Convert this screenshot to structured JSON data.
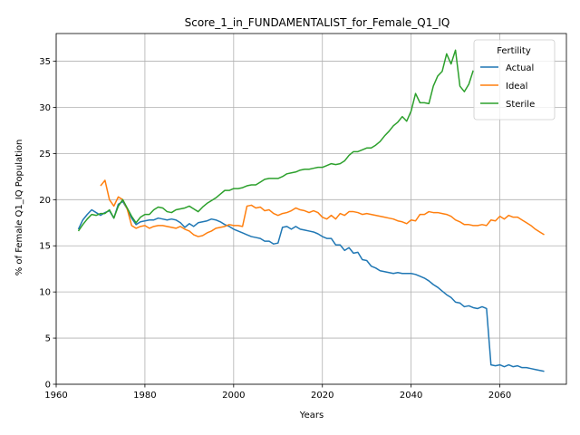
{
  "chart_data": {
    "type": "line",
    "title": "Score_1_in_FUNDAMENTALIST_for_Female_Q1_IQ",
    "xlabel": "Years",
    "ylabel": "% of Female Q1_IQ Population",
    "xlim": [
      1960,
      2075
    ],
    "ylim": [
      0,
      38
    ],
    "xticks": [
      1960,
      1980,
      2000,
      2020,
      2040,
      2060
    ],
    "yticks": [
      0,
      5,
      10,
      15,
      20,
      25,
      30,
      35
    ],
    "grid": true,
    "legend": {
      "title": "Fertility",
      "position": "top-right"
    },
    "series": [
      {
        "name": "Actual",
        "color": "#1f77b4",
        "points": [
          [
            1965,
            16.8
          ],
          [
            1966,
            17.8
          ],
          [
            1967,
            18.4
          ],
          [
            1968,
            18.9
          ],
          [
            1969,
            18.6
          ],
          [
            1970,
            18.3
          ],
          [
            1971,
            18.6
          ],
          [
            1972,
            18.8
          ],
          [
            1973,
            18.0
          ],
          [
            1974,
            19.5
          ],
          [
            1975,
            19.8
          ],
          [
            1976,
            19.0
          ],
          [
            1977,
            18.0
          ],
          [
            1978,
            17.3
          ],
          [
            1979,
            17.6
          ],
          [
            1980,
            17.7
          ],
          [
            1981,
            17.8
          ],
          [
            1982,
            17.8
          ],
          [
            1983,
            18.0
          ],
          [
            1984,
            17.9
          ],
          [
            1985,
            17.8
          ],
          [
            1986,
            17.9
          ],
          [
            1987,
            17.8
          ],
          [
            1988,
            17.5
          ],
          [
            1989,
            17.0
          ],
          [
            1990,
            17.4
          ],
          [
            1991,
            17.1
          ],
          [
            1992,
            17.5
          ],
          [
            1993,
            17.6
          ],
          [
            1994,
            17.7
          ],
          [
            1995,
            17.9
          ],
          [
            1996,
            17.8
          ],
          [
            1997,
            17.6
          ],
          [
            1998,
            17.3
          ],
          [
            1999,
            17.1
          ],
          [
            2000,
            16.8
          ],
          [
            2001,
            16.6
          ],
          [
            2002,
            16.4
          ],
          [
            2003,
            16.2
          ],
          [
            2004,
            16.0
          ],
          [
            2005,
            15.9
          ],
          [
            2006,
            15.8
          ],
          [
            2007,
            15.5
          ],
          [
            2008,
            15.5
          ],
          [
            2009,
            15.2
          ],
          [
            2010,
            15.3
          ],
          [
            2011,
            17.0
          ],
          [
            2012,
            17.1
          ],
          [
            2013,
            16.8
          ],
          [
            2014,
            17.1
          ],
          [
            2015,
            16.8
          ],
          [
            2016,
            16.7
          ],
          [
            2017,
            16.6
          ],
          [
            2018,
            16.5
          ],
          [
            2019,
            16.3
          ],
          [
            2020,
            16.0
          ],
          [
            2021,
            15.8
          ],
          [
            2022,
            15.8
          ],
          [
            2023,
            15.1
          ],
          [
            2024,
            15.1
          ],
          [
            2025,
            14.5
          ],
          [
            2026,
            14.8
          ],
          [
            2027,
            14.2
          ],
          [
            2028,
            14.3
          ],
          [
            2029,
            13.5
          ],
          [
            2030,
            13.4
          ],
          [
            2031,
            12.8
          ],
          [
            2032,
            12.6
          ],
          [
            2033,
            12.3
          ],
          [
            2034,
            12.2
          ],
          [
            2035,
            12.1
          ],
          [
            2036,
            12.0
          ],
          [
            2037,
            12.1
          ],
          [
            2038,
            12.0
          ],
          [
            2039,
            12.0
          ],
          [
            2040,
            12.0
          ],
          [
            2041,
            11.9
          ],
          [
            2042,
            11.7
          ],
          [
            2043,
            11.5
          ],
          [
            2044,
            11.2
          ],
          [
            2045,
            10.8
          ],
          [
            2046,
            10.5
          ],
          [
            2047,
            10.1
          ],
          [
            2048,
            9.7
          ],
          [
            2049,
            9.4
          ],
          [
            2050,
            8.9
          ],
          [
            2051,
            8.8
          ],
          [
            2052,
            8.4
          ],
          [
            2053,
            8.5
          ],
          [
            2054,
            8.3
          ],
          [
            2055,
            8.2
          ],
          [
            2056,
            8.4
          ],
          [
            2057,
            8.2
          ],
          [
            2058,
            2.1
          ],
          [
            2059,
            2.0
          ],
          [
            2060,
            2.1
          ],
          [
            2061,
            1.9
          ],
          [
            2062,
            2.1
          ],
          [
            2063,
            1.9
          ],
          [
            2064,
            2.0
          ],
          [
            2065,
            1.8
          ],
          [
            2066,
            1.8
          ],
          [
            2067,
            1.7
          ],
          [
            2068,
            1.6
          ],
          [
            2069,
            1.5
          ],
          [
            2070,
            1.4
          ]
        ]
      },
      {
        "name": "Ideal",
        "color": "#ff7f0e",
        "points": [
          [
            1970,
            21.5
          ],
          [
            1971,
            22.1
          ],
          [
            1972,
            20.0
          ],
          [
            1973,
            19.3
          ],
          [
            1974,
            20.3
          ],
          [
            1975,
            20.0
          ],
          [
            1976,
            19.0
          ],
          [
            1977,
            17.2
          ],
          [
            1978,
            16.9
          ],
          [
            1979,
            17.1
          ],
          [
            1980,
            17.2
          ],
          [
            1981,
            16.9
          ],
          [
            1982,
            17.1
          ],
          [
            1983,
            17.2
          ],
          [
            1984,
            17.2
          ],
          [
            1985,
            17.1
          ],
          [
            1986,
            17.0
          ],
          [
            1987,
            16.9
          ],
          [
            1988,
            17.1
          ],
          [
            1989,
            16.8
          ],
          [
            1990,
            16.6
          ],
          [
            1991,
            16.2
          ],
          [
            1992,
            16.0
          ],
          [
            1993,
            16.1
          ],
          [
            1994,
            16.4
          ],
          [
            1995,
            16.6
          ],
          [
            1996,
            16.9
          ],
          [
            1997,
            17.0
          ],
          [
            1998,
            17.1
          ],
          [
            1999,
            17.3
          ],
          [
            2000,
            17.2
          ],
          [
            2001,
            17.2
          ],
          [
            2002,
            17.1
          ],
          [
            2003,
            19.3
          ],
          [
            2004,
            19.4
          ],
          [
            2005,
            19.1
          ],
          [
            2006,
            19.2
          ],
          [
            2007,
            18.8
          ],
          [
            2008,
            18.9
          ],
          [
            2009,
            18.5
          ],
          [
            2010,
            18.3
          ],
          [
            2011,
            18.5
          ],
          [
            2012,
            18.6
          ],
          [
            2013,
            18.8
          ],
          [
            2014,
            19.1
          ],
          [
            2015,
            18.9
          ],
          [
            2016,
            18.8
          ],
          [
            2017,
            18.6
          ],
          [
            2018,
            18.8
          ],
          [
            2019,
            18.6
          ],
          [
            2020,
            18.1
          ],
          [
            2021,
            17.9
          ],
          [
            2022,
            18.3
          ],
          [
            2023,
            17.9
          ],
          [
            2024,
            18.5
          ],
          [
            2025,
            18.3
          ],
          [
            2026,
            18.7
          ],
          [
            2027,
            18.7
          ],
          [
            2028,
            18.6
          ],
          [
            2029,
            18.4
          ],
          [
            2030,
            18.5
          ],
          [
            2031,
            18.4
          ],
          [
            2032,
            18.3
          ],
          [
            2033,
            18.2
          ],
          [
            2034,
            18.1
          ],
          [
            2035,
            18.0
          ],
          [
            2036,
            17.9
          ],
          [
            2037,
            17.7
          ],
          [
            2038,
            17.6
          ],
          [
            2039,
            17.4
          ],
          [
            2040,
            17.8
          ],
          [
            2041,
            17.7
          ],
          [
            2042,
            18.4
          ],
          [
            2043,
            18.4
          ],
          [
            2044,
            18.7
          ],
          [
            2045,
            18.6
          ],
          [
            2046,
            18.6
          ],
          [
            2047,
            18.5
          ],
          [
            2048,
            18.4
          ],
          [
            2049,
            18.2
          ],
          [
            2050,
            17.8
          ],
          [
            2051,
            17.6
          ],
          [
            2052,
            17.3
          ],
          [
            2053,
            17.3
          ],
          [
            2054,
            17.2
          ],
          [
            2055,
            17.2
          ],
          [
            2056,
            17.3
          ],
          [
            2057,
            17.2
          ],
          [
            2058,
            17.8
          ],
          [
            2059,
            17.7
          ],
          [
            2060,
            18.2
          ],
          [
            2061,
            17.9
          ],
          [
            2062,
            18.3
          ],
          [
            2063,
            18.1
          ],
          [
            2064,
            18.1
          ],
          [
            2065,
            17.8
          ],
          [
            2066,
            17.5
          ],
          [
            2067,
            17.2
          ],
          [
            2068,
            16.8
          ],
          [
            2069,
            16.5
          ],
          [
            2070,
            16.2
          ]
        ]
      },
      {
        "name": "Sterile",
        "color": "#2ca02c",
        "points": [
          [
            1965,
            16.6
          ],
          [
            1966,
            17.3
          ],
          [
            1967,
            17.9
          ],
          [
            1968,
            18.4
          ],
          [
            1969,
            18.3
          ],
          [
            1970,
            18.5
          ],
          [
            1971,
            18.5
          ],
          [
            1972,
            18.9
          ],
          [
            1973,
            18.0
          ],
          [
            1974,
            19.3
          ],
          [
            1975,
            20.0
          ],
          [
            1976,
            19.1
          ],
          [
            1977,
            18.2
          ],
          [
            1978,
            17.5
          ],
          [
            1979,
            18.1
          ],
          [
            1980,
            18.4
          ],
          [
            1981,
            18.4
          ],
          [
            1982,
            18.9
          ],
          [
            1983,
            19.2
          ],
          [
            1984,
            19.1
          ],
          [
            1985,
            18.7
          ],
          [
            1986,
            18.6
          ],
          [
            1987,
            18.9
          ],
          [
            1988,
            19.0
          ],
          [
            1989,
            19.1
          ],
          [
            1990,
            19.3
          ],
          [
            1991,
            19.0
          ],
          [
            1992,
            18.7
          ],
          [
            1993,
            19.2
          ],
          [
            1994,
            19.6
          ],
          [
            1995,
            19.9
          ],
          [
            1996,
            20.2
          ],
          [
            1997,
            20.6
          ],
          [
            1998,
            21.0
          ],
          [
            1999,
            21.0
          ],
          [
            2000,
            21.2
          ],
          [
            2001,
            21.2
          ],
          [
            2002,
            21.3
          ],
          [
            2003,
            21.5
          ],
          [
            2004,
            21.6
          ],
          [
            2005,
            21.6
          ],
          [
            2006,
            21.9
          ],
          [
            2007,
            22.2
          ],
          [
            2008,
            22.3
          ],
          [
            2009,
            22.3
          ],
          [
            2010,
            22.3
          ],
          [
            2011,
            22.5
          ],
          [
            2012,
            22.8
          ],
          [
            2013,
            22.9
          ],
          [
            2014,
            23.0
          ],
          [
            2015,
            23.2
          ],
          [
            2016,
            23.3
          ],
          [
            2017,
            23.3
          ],
          [
            2018,
            23.4
          ],
          [
            2019,
            23.5
          ],
          [
            2020,
            23.5
          ],
          [
            2021,
            23.7
          ],
          [
            2022,
            23.9
          ],
          [
            2023,
            23.8
          ],
          [
            2024,
            23.9
          ],
          [
            2025,
            24.2
          ],
          [
            2026,
            24.8
          ],
          [
            2027,
            25.2
          ],
          [
            2028,
            25.2
          ],
          [
            2029,
            25.4
          ],
          [
            2030,
            25.6
          ],
          [
            2031,
            25.6
          ],
          [
            2032,
            25.9
          ],
          [
            2033,
            26.3
          ],
          [
            2034,
            26.9
          ],
          [
            2035,
            27.4
          ],
          [
            2036,
            28.0
          ],
          [
            2037,
            28.4
          ],
          [
            2038,
            29.0
          ],
          [
            2039,
            28.5
          ],
          [
            2040,
            29.6
          ],
          [
            2041,
            31.5
          ],
          [
            2042,
            30.5
          ],
          [
            2043,
            30.5
          ],
          [
            2044,
            30.4
          ],
          [
            2045,
            32.3
          ],
          [
            2046,
            33.4
          ],
          [
            2047,
            33.9
          ],
          [
            2048,
            35.8
          ],
          [
            2049,
            34.7
          ],
          [
            2050,
            36.2
          ],
          [
            2051,
            32.3
          ],
          [
            2052,
            31.7
          ],
          [
            2053,
            32.5
          ],
          [
            2054,
            34.0
          ]
        ]
      }
    ]
  }
}
